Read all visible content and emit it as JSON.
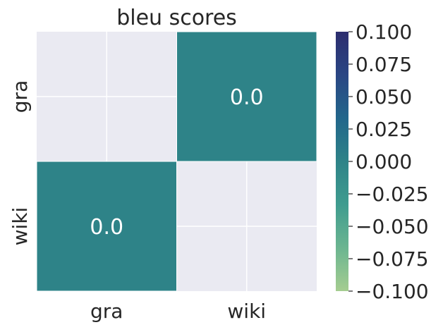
{
  "chart_data": {
    "type": "heatmap",
    "title": "bleu scores",
    "xlabel": "",
    "ylabel": "",
    "x_categories": [
      "gra",
      "wiki"
    ],
    "y_categories": [
      "gra",
      "wiki"
    ],
    "cells": [
      [
        null,
        0.0
      ],
      [
        0.0,
        null
      ]
    ],
    "annotations": [
      [
        "",
        "0.0"
      ],
      [
        "0.0",
        ""
      ]
    ],
    "grid": true,
    "colorbar": {
      "range": [
        -0.1,
        0.1
      ],
      "colormap": "crest",
      "ticks": [
        "0.100",
        "0.075",
        "0.050",
        "0.025",
        "0.000",
        "−0.025",
        "−0.050",
        "−0.075",
        "−0.100"
      ],
      "tick_values": [
        0.1,
        0.075,
        0.05,
        0.025,
        0.0,
        -0.025,
        -0.05,
        -0.075,
        -0.1
      ]
    },
    "colors": {
      "cell_value_color": "#2e8388",
      "masked_background": "#eaeaf2",
      "grid_line": "#ffffff",
      "colormap_stops": [
        "#a5cd90",
        "#6bb590",
        "#3f9c8f",
        "#2e8388",
        "#22668b",
        "#2a4684",
        "#2c2d6e"
      ]
    }
  }
}
